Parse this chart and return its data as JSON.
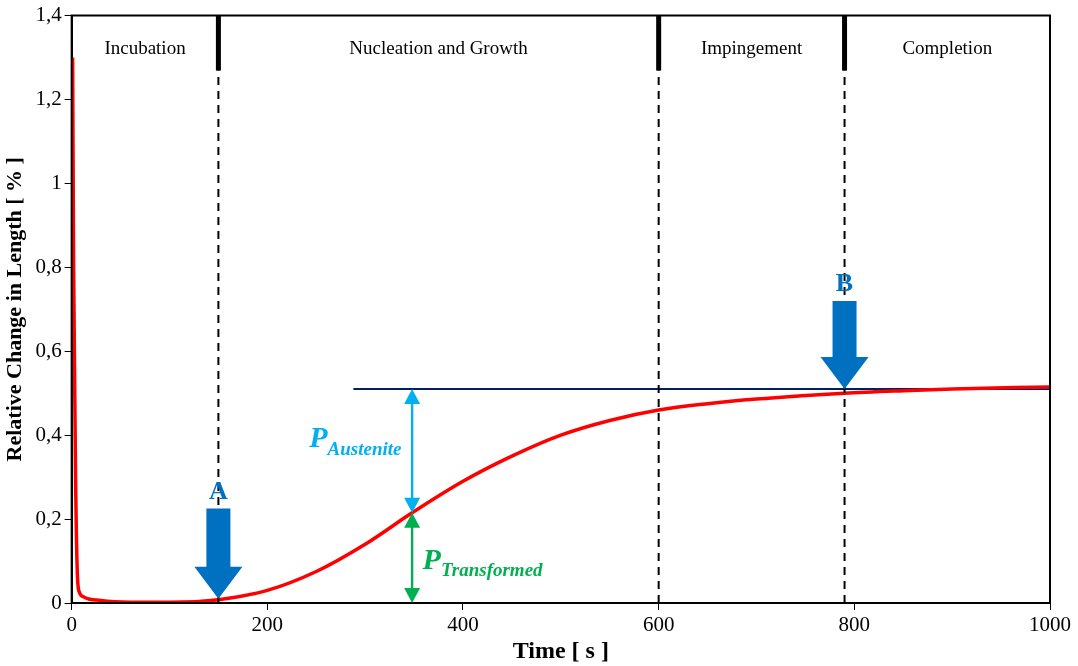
{
  "chart_data": {
    "type": "line",
    "xlabel": "Time [ s ]",
    "ylabel": "Relative Change in Length [ % ]",
    "series": [
      {
        "color": "#ff0000",
        "x": [
          1,
          2,
          4,
          6,
          8,
          12,
          30,
          60,
          100,
          150,
          200,
          250,
          300,
          348,
          400,
          450,
          500,
          550,
          600,
          650,
          700,
          790,
          850,
          900,
          1000
        ],
        "values": [
          1.3,
          0.8,
          0.3,
          0.06,
          0.025,
          0.015,
          0.006,
          0.002,
          0.002,
          0.008,
          0.03,
          0.075,
          0.14,
          0.215,
          0.29,
          0.35,
          0.4,
          0.435,
          0.46,
          0.475,
          0.486,
          0.5,
          0.506,
          0.51,
          0.515
        ]
      },
      {
        "color": "#002060",
        "x": [
          288,
          1000
        ],
        "values": [
          0.51,
          0.51
        ]
      }
    ],
    "xlim": [
      0,
      1000
    ],
    "xticks": [
      0,
      200,
      400,
      600,
      800,
      1000
    ],
    "ylim": [
      0,
      1.4
    ],
    "yticks": [
      0,
      {
        "value": 0.2,
        "label": "0,2"
      },
      {
        "value": 0.4,
        "label": "0,4"
      },
      {
        "value": 0.6,
        "label": "0,6"
      },
      {
        "value": 0.8,
        "label": "0,8"
      },
      1,
      {
        "value": 1.2,
        "label": "1,2"
      },
      {
        "value": 1.4,
        "label": "1,4"
      }
    ],
    "ref_lines": [
      {
        "axis": "x",
        "value": 150,
        "color": "#000000",
        "line_style": "dashed"
      },
      {
        "axis": "x",
        "value": 600,
        "color": "#000000",
        "line_style": "dashed"
      },
      {
        "axis": "x",
        "value": 790,
        "color": "#000000",
        "line_style": "dashed"
      }
    ],
    "annotations": [
      "Incubation",
      "Nucleation and Growth",
      "Impingement",
      "Completion",
      {
        "text": "A",
        "x": 150,
        "y": 0.265
      },
      {
        "text": "B",
        "x": 790,
        "y": 0.76
      },
      "P$_{Austenite}$",
      "P$_{Transformed}$"
    ],
    "grid": false,
    "legend": false,
    "marker": "none",
    "line_style": "solid"
  }
}
